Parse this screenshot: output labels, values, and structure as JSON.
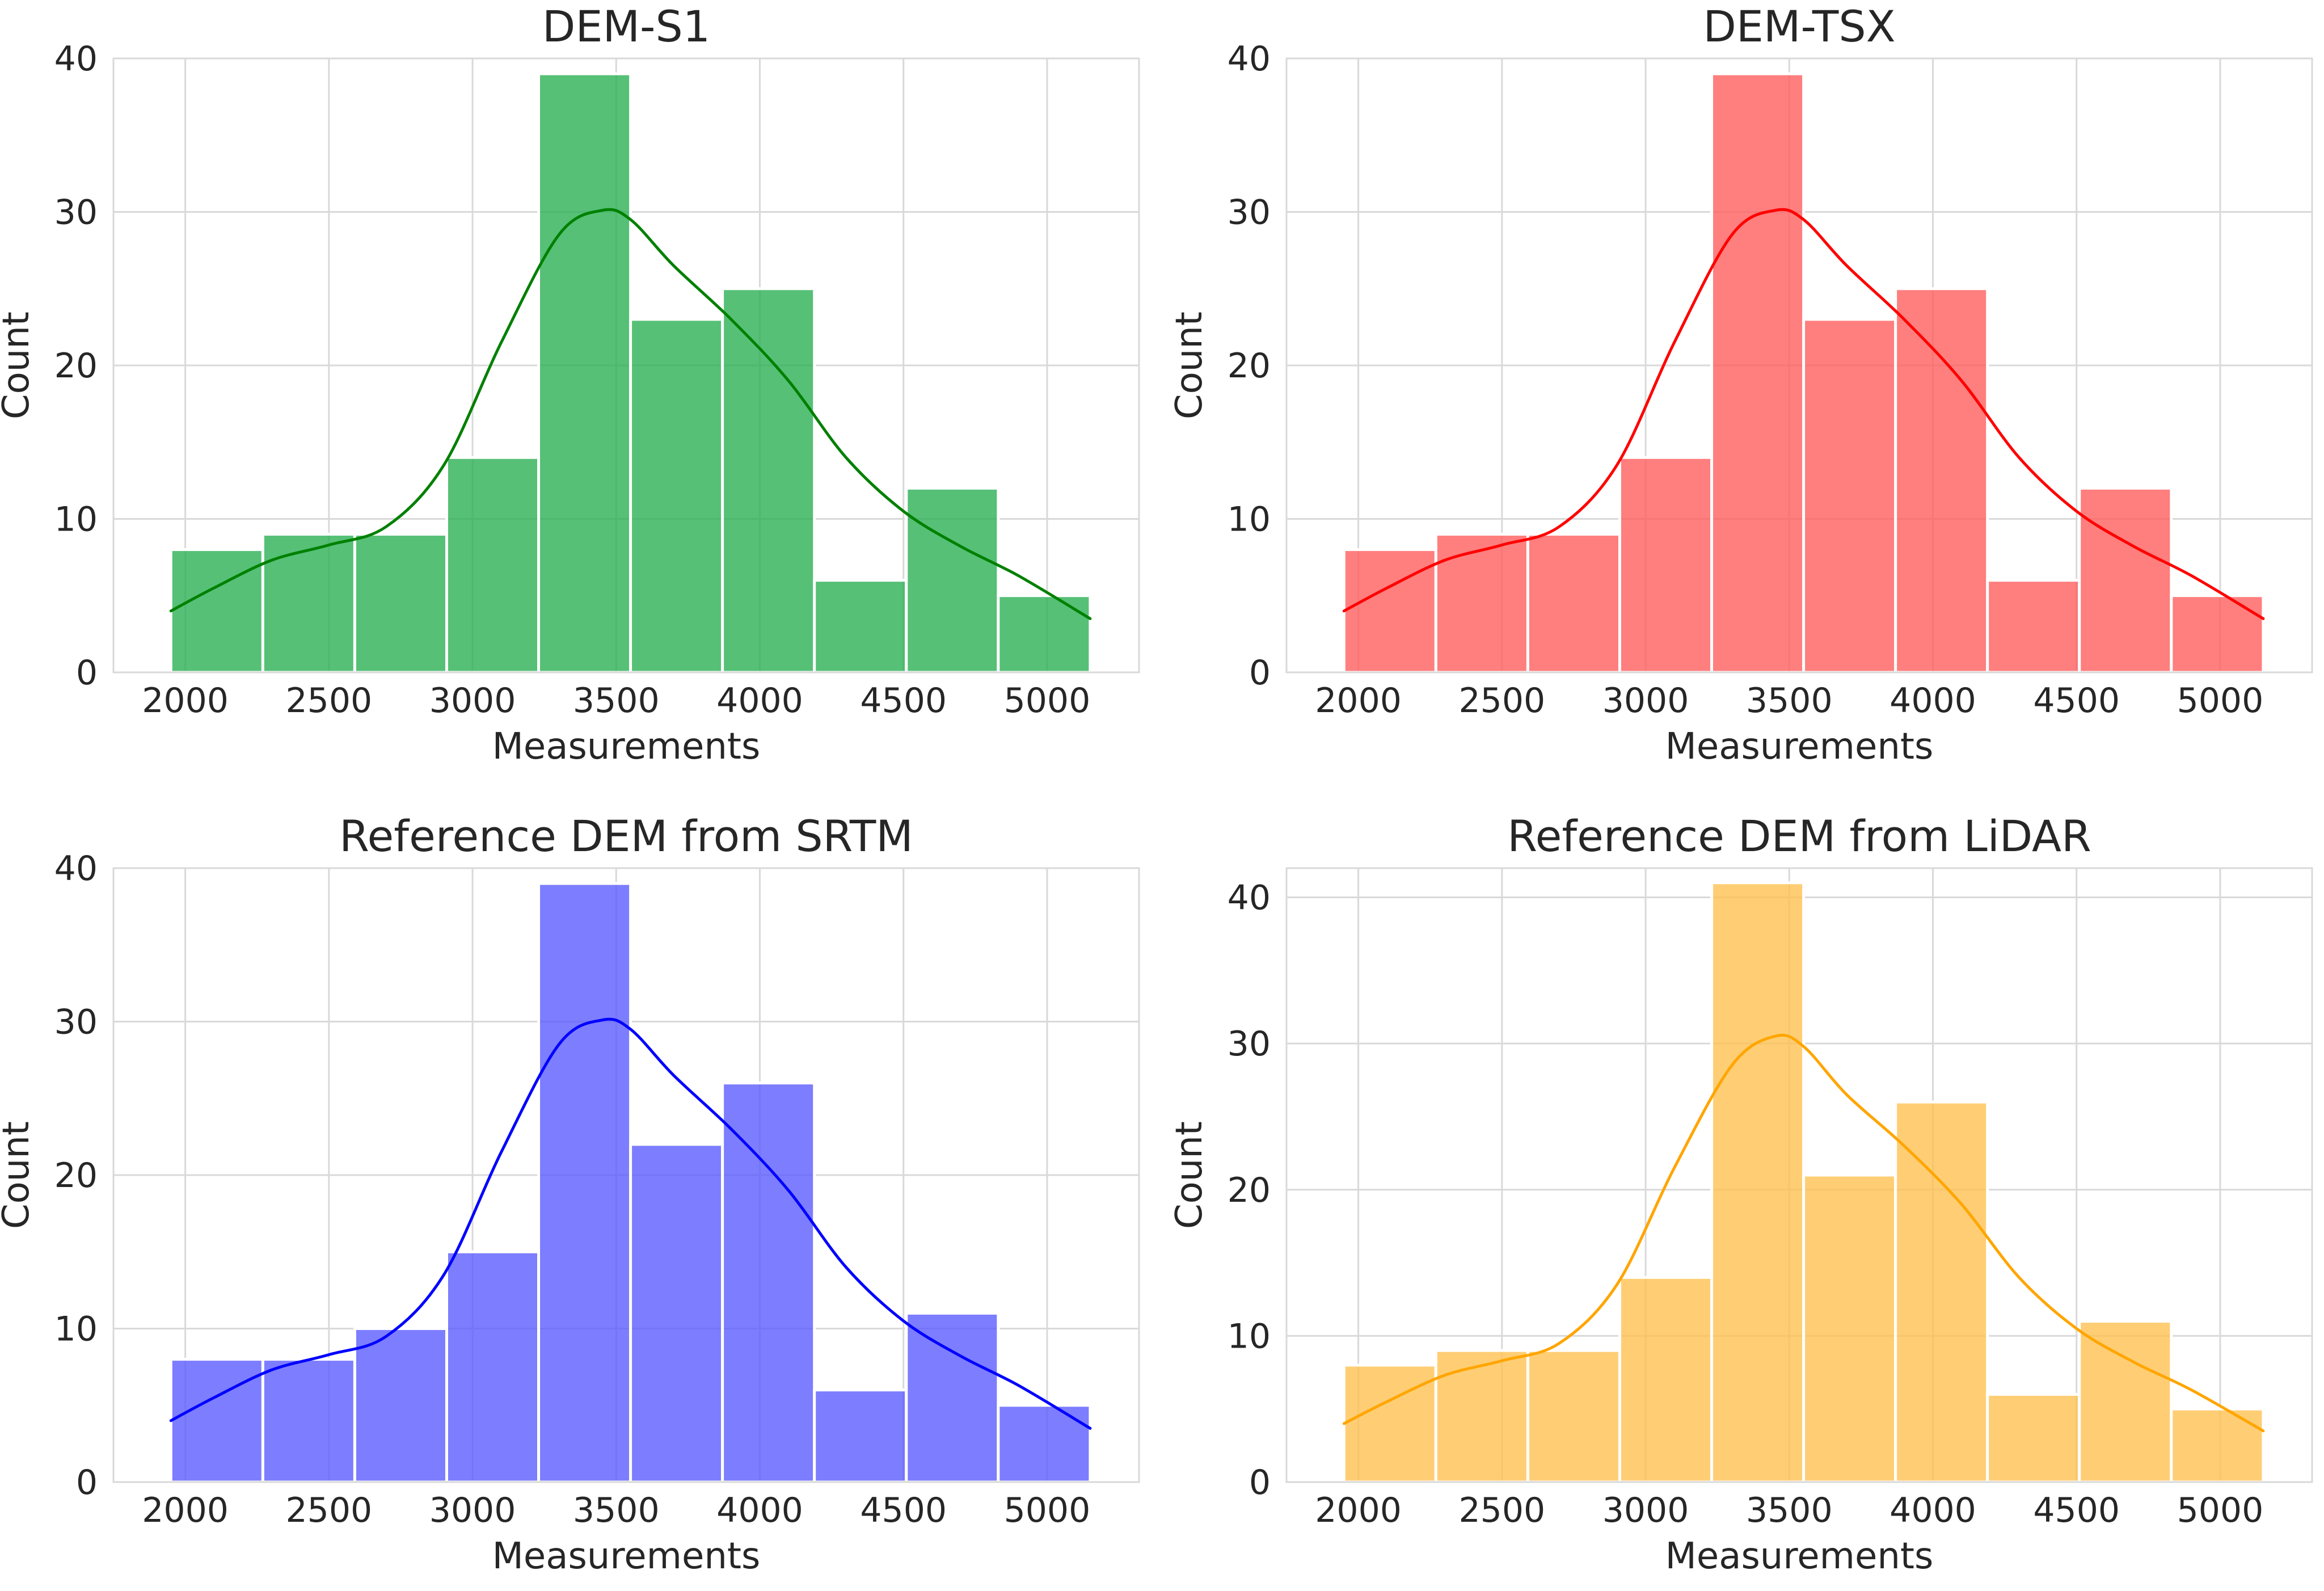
{
  "chart_data": [
    {
      "type": "bar",
      "subtype": "histogram-with-kde",
      "title": "DEM-S1",
      "xlabel": "Measurements",
      "ylabel": "Count",
      "xlim": [
        1750,
        5320
      ],
      "ylim": [
        0,
        40
      ],
      "xticks": [
        2000,
        2500,
        3000,
        3500,
        4000,
        4500,
        5000
      ],
      "yticks": [
        0,
        10,
        20,
        30,
        40
      ],
      "bin_edges": [
        1950,
        2270,
        2590,
        2910,
        3230,
        3550,
        3870,
        4190,
        4510,
        4830,
        5150
      ],
      "values": [
        8,
        9,
        9,
        14,
        39,
        23,
        25,
        6,
        12,
        5
      ],
      "kde": {
        "x": [
          1950,
          2100,
          2300,
          2500,
          2700,
          2900,
          3100,
          3300,
          3450,
          3550,
          3700,
          3900,
          4100,
          4300,
          4500,
          4700,
          4900,
          5150
        ],
        "y": [
          4,
          5.5,
          7.3,
          8.3,
          9.5,
          13.5,
          21.5,
          28.5,
          30.1,
          29.5,
          26.5,
          23,
          19,
          14,
          10.5,
          8.2,
          6.3,
          3.5
        ]
      },
      "color": "#27ae4f",
      "line_color": "#008000",
      "bar_alpha": 0.78
    },
    {
      "type": "bar",
      "subtype": "histogram-with-kde",
      "title": "DEM-TSX",
      "xlabel": "Measurements",
      "ylabel": "Count",
      "xlim": [
        1750,
        5320
      ],
      "ylim": [
        0,
        40
      ],
      "xticks": [
        2000,
        2500,
        3000,
        3500,
        4000,
        4500,
        5000
      ],
      "yticks": [
        0,
        10,
        20,
        30,
        40
      ],
      "bin_edges": [
        1950,
        2270,
        2590,
        2910,
        3230,
        3550,
        3870,
        4190,
        4510,
        4830,
        5150
      ],
      "values": [
        8,
        9,
        9,
        14,
        39,
        23,
        25,
        6,
        12,
        5
      ],
      "kde": {
        "x": [
          1950,
          2100,
          2300,
          2500,
          2700,
          2900,
          3100,
          3300,
          3450,
          3550,
          3700,
          3900,
          4100,
          4300,
          4500,
          4700,
          4900,
          5150
        ],
        "y": [
          4,
          5.5,
          7.3,
          8.3,
          9.5,
          13.5,
          21.5,
          28.5,
          30.1,
          29.5,
          26.5,
          23,
          19,
          14,
          10.5,
          8.2,
          6.3,
          3.5
        ]
      },
      "color": "#ff5a5a",
      "line_color": "#ff0000",
      "bar_alpha": 0.78
    },
    {
      "type": "bar",
      "subtype": "histogram-with-kde",
      "title": "Reference DEM from SRTM",
      "xlabel": "Measurements",
      "ylabel": "Count",
      "xlim": [
        1750,
        5320
      ],
      "ylim": [
        0,
        40
      ],
      "xticks": [
        2000,
        2500,
        3000,
        3500,
        4000,
        4500,
        5000
      ],
      "yticks": [
        0,
        10,
        20,
        30,
        40
      ],
      "bin_edges": [
        1950,
        2270,
        2590,
        2910,
        3230,
        3550,
        3870,
        4190,
        4510,
        4830,
        5150
      ],
      "values": [
        8,
        8,
        10,
        15,
        39,
        22,
        26,
        6,
        11,
        5
      ],
      "kde": {
        "x": [
          1950,
          2100,
          2300,
          2500,
          2700,
          2900,
          3100,
          3300,
          3450,
          3550,
          3700,
          3900,
          4100,
          4300,
          4500,
          4700,
          4900,
          5150
        ],
        "y": [
          4,
          5.5,
          7.3,
          8.3,
          9.5,
          13.5,
          21.5,
          28.5,
          30.1,
          29.5,
          26.5,
          23,
          19,
          14,
          10.5,
          8.2,
          6.3,
          3.5
        ]
      },
      "color": "#5858ff",
      "line_color": "#0000ff",
      "bar_alpha": 0.78
    },
    {
      "type": "bar",
      "subtype": "histogram-with-kde",
      "title": "Reference DEM from LiDAR",
      "xlabel": "Measurements",
      "ylabel": "Count",
      "xlim": [
        1750,
        5320
      ],
      "ylim": [
        0,
        42
      ],
      "xticks": [
        2000,
        2500,
        3000,
        3500,
        4000,
        4500,
        5000
      ],
      "yticks": [
        0,
        10,
        20,
        30,
        40
      ],
      "bin_edges": [
        1950,
        2270,
        2590,
        2910,
        3230,
        3550,
        3870,
        4190,
        4510,
        4830,
        5150
      ],
      "values": [
        8,
        9,
        9,
        14,
        41,
        21,
        26,
        6,
        11,
        5
      ],
      "kde": {
        "x": [
          1950,
          2100,
          2300,
          2500,
          2700,
          2900,
          3100,
          3300,
          3450,
          3550,
          3700,
          3900,
          4100,
          4300,
          4500,
          4700,
          4900,
          5150
        ],
        "y": [
          4,
          5.5,
          7.3,
          8.3,
          9.5,
          13.5,
          21.5,
          28.5,
          30.5,
          29.8,
          26.5,
          23,
          19,
          14,
          10.5,
          8.2,
          6.3,
          3.5
        ]
      },
      "color": "#ffc04d",
      "line_color": "#ffa500",
      "bar_alpha": 0.78
    }
  ]
}
